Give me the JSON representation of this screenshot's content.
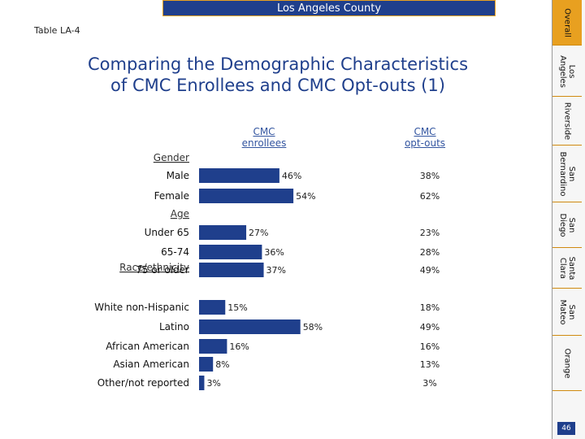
{
  "header": {
    "region_title": "Los Angeles County",
    "table_label": "Table LA-4"
  },
  "title": {
    "line1": "Comparing the Demographic Characteristics",
    "line2": "of CMC Enrollees and CMC Opt-outs (1)"
  },
  "columns": {
    "enrollees_line1": "CMC",
    "enrollees_line2": "enrollees",
    "optouts_line1": "CMC",
    "optouts_line2": "opt-outs"
  },
  "chart_data": {
    "type": "bar",
    "orientation": "horizontal",
    "title": "Comparing the Demographic Characteristics of CMC Enrollees and CMC Opt-outs (1)",
    "groups": [
      "Gender",
      "Age",
      "Race/ethnicity"
    ],
    "categories": [
      "Male",
      "Female",
      "Under 65",
      "65-74",
      "75 or older",
      "White non-Hispanic",
      "Latino",
      "African American",
      "Asian American",
      "Other/not reported"
    ],
    "category_groups": [
      0,
      0,
      1,
      1,
      1,
      2,
      2,
      2,
      2,
      2
    ],
    "series": [
      {
        "name": "CMC enrollees",
        "values": [
          46,
          54,
          27,
          36,
          37,
          15,
          58,
          16,
          8,
          3
        ],
        "labels": [
          "46%",
          "54%",
          "27%",
          "36%",
          "37%",
          "15%",
          "58%",
          "16%",
          "8%",
          "3%"
        ]
      },
      {
        "name": "CMC opt-outs",
        "values": [
          38,
          62,
          23,
          28,
          49,
          18,
          49,
          16,
          13,
          3
        ],
        "labels": [
          "38%",
          "62%",
          "23%",
          "28%",
          "49%",
          "18%",
          "49%",
          "16%",
          "13%",
          "3%"
        ]
      }
    ],
    "bar_series": "CMC enrollees",
    "text_series": "CMC opt-outs",
    "xlim": [
      0,
      100
    ],
    "colors": {
      "bar": "#1f3f8c",
      "label": "#222222",
      "group_label": "#333333"
    }
  },
  "sidenav": {
    "tabs": [
      {
        "label": "Overall",
        "active": true
      },
      {
        "label": "Los\nAngeles",
        "active": false
      },
      {
        "label": "Riverside",
        "active": false
      },
      {
        "label": "San\nBernardino",
        "active": false
      },
      {
        "label": "San\nDiego",
        "active": false
      },
      {
        "label": "Santa\nClara",
        "active": false
      },
      {
        "label": "San\nMateo",
        "active": false
      },
      {
        "label": "Orange",
        "active": false
      }
    ],
    "page_number": "46"
  }
}
